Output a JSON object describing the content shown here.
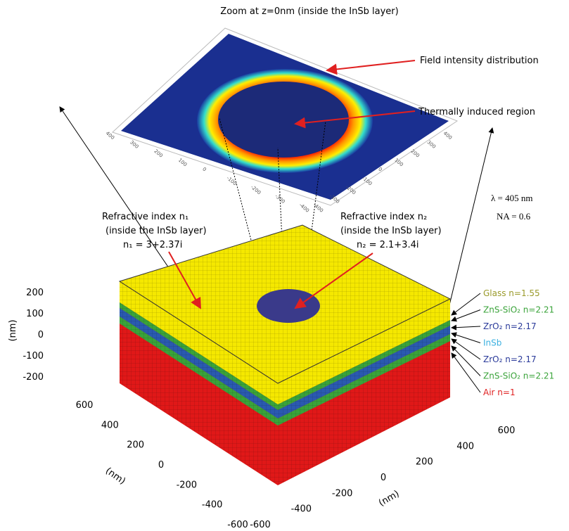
{
  "header": {
    "title": "Zoom at z=0nm (inside the InSb layer)"
  },
  "annotations": {
    "field": "Field intensity distribution",
    "thermal": "Thermally induced region"
  },
  "plane_ticks": {
    "left": [
      "400",
      "300",
      "200",
      "100",
      "0",
      "-100",
      "-200",
      "-300",
      "-400"
    ],
    "right": [
      "-400",
      "-300",
      "-200",
      "-100",
      "0",
      "100",
      "200",
      "300",
      "400"
    ]
  },
  "index1": {
    "title": "Refractive index n₁",
    "note": "(inside the InSb layer)",
    "value": "n₁ = 3+2.37i"
  },
  "index2": {
    "title": "Refractive index n₂",
    "note": "(inside the InSb layer)",
    "value": "n₂ = 2.1+3.4i"
  },
  "optics": {
    "wavelength": "λ = 405 nm",
    "na": "NA = 0.6"
  },
  "layers": [
    {
      "label": "Glass n=1.55",
      "color": "#9a9a2a"
    },
    {
      "label": "ZnS-SiO₂ n=2.21",
      "color": "#3aa33a"
    },
    {
      "label": "ZrO₂ n=2.17",
      "color": "#2a3a9a"
    },
    {
      "label": "InSb",
      "color": "#3ab0e0"
    },
    {
      "label": "ZrO₂ n=2.17",
      "color": "#2a3a9a"
    },
    {
      "label": "ZnS-SiO₂ n=2.21",
      "color": "#3aa33a"
    },
    {
      "label": "Air n=1",
      "color": "#e02020"
    }
  ],
  "axes": {
    "z_ticks": [
      "200",
      "100",
      "0",
      "-100",
      "-200"
    ],
    "z_label": "(nm)",
    "x_ticks": [
      "600",
      "400",
      "200",
      "0",
      "-200",
      "-400",
      "-600"
    ],
    "x_label": "(nm)",
    "y_ticks": [
      "-600",
      "-400",
      "-200",
      "0",
      "200",
      "400",
      "600"
    ],
    "y_label": "(nm)"
  }
}
